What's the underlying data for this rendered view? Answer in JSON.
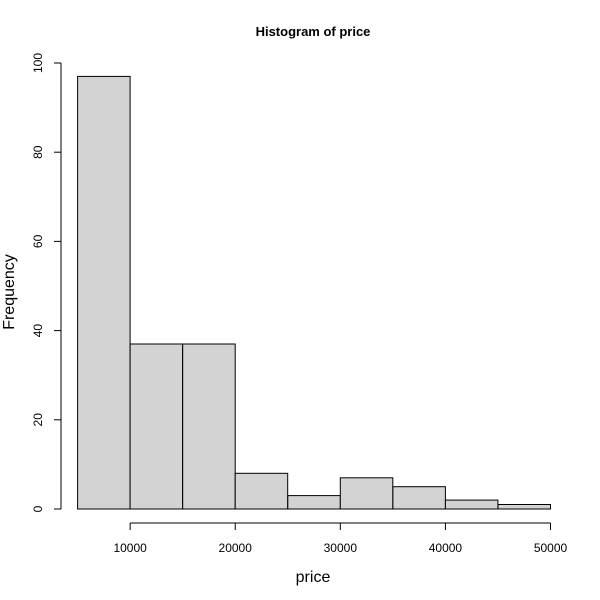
{
  "chart_data": {
    "type": "bar",
    "title": "Histogram of price",
    "xlabel": "price",
    "ylabel": "Frequency",
    "bins": [
      {
        "start": 5000,
        "end": 10000,
        "count": 97
      },
      {
        "start": 10000,
        "end": 15000,
        "count": 37
      },
      {
        "start": 15000,
        "end": 20000,
        "count": 37
      },
      {
        "start": 20000,
        "end": 25000,
        "count": 8
      },
      {
        "start": 25000,
        "end": 30000,
        "count": 3
      },
      {
        "start": 30000,
        "end": 35000,
        "count": 7
      },
      {
        "start": 35000,
        "end": 40000,
        "count": 5
      },
      {
        "start": 40000,
        "end": 45000,
        "count": 2
      },
      {
        "start": 45000,
        "end": 50000,
        "count": 1
      }
    ],
    "xlim": [
      5000,
      50000
    ],
    "ylim": [
      0,
      100
    ],
    "x_ticks": [
      10000,
      20000,
      30000,
      40000,
      50000
    ],
    "x_tick_labels": [
      "10000",
      "20000",
      "30000",
      "40000",
      "50000"
    ],
    "y_ticks": [
      0,
      20,
      40,
      60,
      80,
      100
    ],
    "y_tick_labels": [
      "0",
      "20",
      "40",
      "60",
      "80",
      "100"
    ],
    "bar_color": "#d3d3d3",
    "grid": false
  }
}
